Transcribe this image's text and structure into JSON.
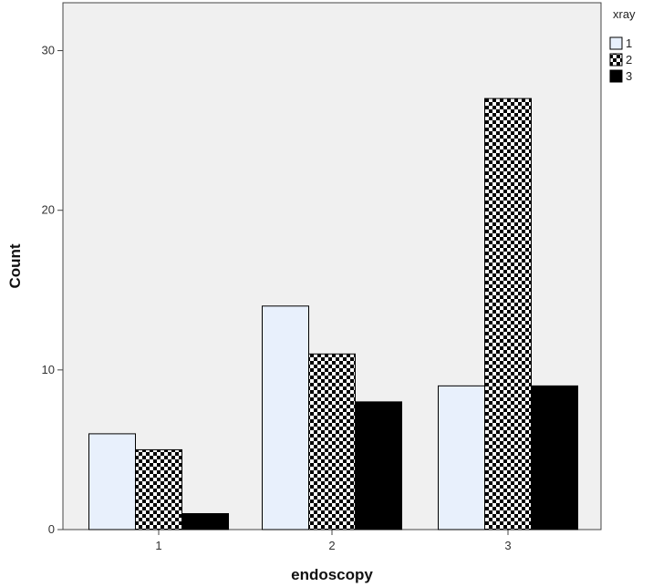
{
  "chart_data": {
    "type": "bar",
    "title": "",
    "xlabel": "endoscopy",
    "ylabel": "Count",
    "categories": [
      "1",
      "2",
      "3"
    ],
    "series": [
      {
        "name": "1",
        "values": [
          6,
          14,
          9
        ],
        "fill": "#e8f0fc"
      },
      {
        "name": "2",
        "values": [
          5,
          11,
          27
        ],
        "fill": "checkerboard"
      },
      {
        "name": "3",
        "values": [
          1,
          8,
          9
        ],
        "fill": "#000000"
      }
    ],
    "ylim": [
      0,
      33
    ],
    "yticks": [
      "0",
      "10",
      "20",
      "30"
    ],
    "grid": false,
    "legend": {
      "title": "xray",
      "position": "top-right"
    },
    "colors": {
      "plot_background": "#f0f0f0",
      "frame": "#444444",
      "bar_outline": "#000000"
    }
  }
}
